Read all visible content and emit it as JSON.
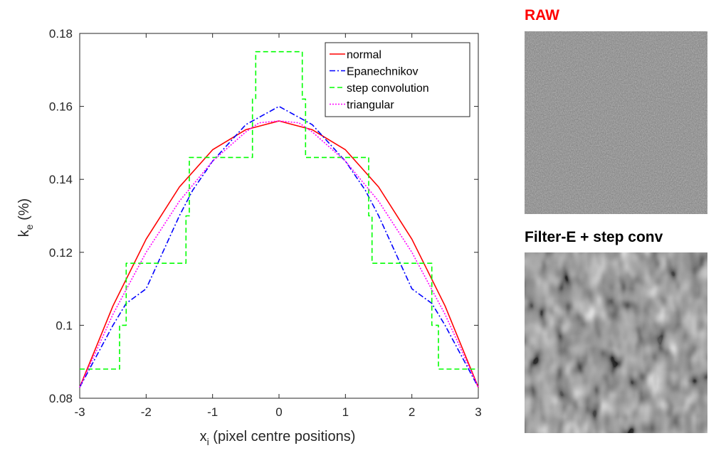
{
  "chart_data": {
    "type": "line",
    "title": "",
    "xlabel_main": "x",
    "xlabel_sub": "i",
    "xlabel_rest": " (pixel centre positions)",
    "ylabel_main": "k",
    "ylabel_sub": "e",
    "ylabel_rest": " (%)",
    "xlim": [
      -3,
      3
    ],
    "ylim": [
      0.08,
      0.18
    ],
    "xticks": [
      -3,
      -2,
      -1,
      0,
      1,
      2,
      3
    ],
    "xtick_labels": [
      "-3",
      "-2",
      "-1",
      "0",
      "1",
      "2",
      "3"
    ],
    "yticks": [
      0.08,
      0.1,
      0.12,
      0.14,
      0.16,
      0.18
    ],
    "ytick_labels": [
      "0.08",
      "0.1",
      "0.12",
      "0.14",
      "0.16",
      "0.18"
    ],
    "grid": false,
    "legend_position": "top-right",
    "series": [
      {
        "name": "normal",
        "color": "#ff0000",
        "style": "solid",
        "x": [
          -3,
          -2.5,
          -2,
          -1.5,
          -1,
          -0.5,
          0,
          0.5,
          1,
          1.5,
          2,
          2.5,
          3
        ],
        "y": [
          0.083,
          0.1053,
          0.1236,
          0.1379,
          0.1481,
          0.1536,
          0.156,
          0.1536,
          0.1481,
          0.1379,
          0.1236,
          0.1053,
          0.083
        ]
      },
      {
        "name": "Epanechnikov",
        "color": "#0000ff",
        "style": "dashdot",
        "x": [
          -3,
          -2.5,
          -2.3,
          -2,
          -1.8,
          -1.5,
          -1.3,
          -1,
          -0.5,
          0,
          0.5,
          1,
          1.3,
          1.5,
          1.8,
          2,
          2.3,
          2.5,
          3
        ],
        "y": [
          0.083,
          0.1,
          0.106,
          0.11,
          0.118,
          0.13,
          0.137,
          0.145,
          0.155,
          0.16,
          0.155,
          0.145,
          0.137,
          0.13,
          0.118,
          0.11,
          0.106,
          0.1,
          0.083
        ]
      },
      {
        "name": "step convolution",
        "color": "#00ff00",
        "style": "dashed",
        "x": [
          -3,
          -2.4,
          -2.4,
          -2.3,
          -2.3,
          -1.4,
          -1.4,
          -1.35,
          -1.35,
          -0.4,
          -0.4,
          -0.35,
          -0.35,
          0.35,
          0.35,
          0.4,
          0.4,
          1.35,
          1.35,
          1.4,
          1.4,
          2.3,
          2.3,
          2.4,
          2.4,
          3
        ],
        "y": [
          0.088,
          0.088,
          0.1,
          0.1,
          0.117,
          0.117,
          0.13,
          0.13,
          0.146,
          0.146,
          0.162,
          0.162,
          0.175,
          0.175,
          0.162,
          0.162,
          0.146,
          0.146,
          0.13,
          0.13,
          0.117,
          0.117,
          0.1,
          0.1,
          0.088,
          0.088
        ]
      },
      {
        "name": "triangular",
        "color": "#ff00ff",
        "style": "dotted",
        "x": [
          -3,
          -2.5,
          -2,
          -1.5,
          -1,
          -0.5,
          -0.3,
          0,
          0.3,
          0.5,
          1,
          1.5,
          2,
          2.5,
          3
        ],
        "y": [
          0.083,
          0.103,
          0.12,
          0.134,
          0.145,
          0.153,
          0.1555,
          0.156,
          0.1555,
          0.153,
          0.145,
          0.134,
          0.12,
          0.103,
          0.083
        ]
      }
    ]
  },
  "panels": {
    "raw_title": "RAW",
    "raw_title_color": "#ff0000",
    "filtered_title": "Filter-E + step conv",
    "filtered_title_color": "#000000"
  }
}
